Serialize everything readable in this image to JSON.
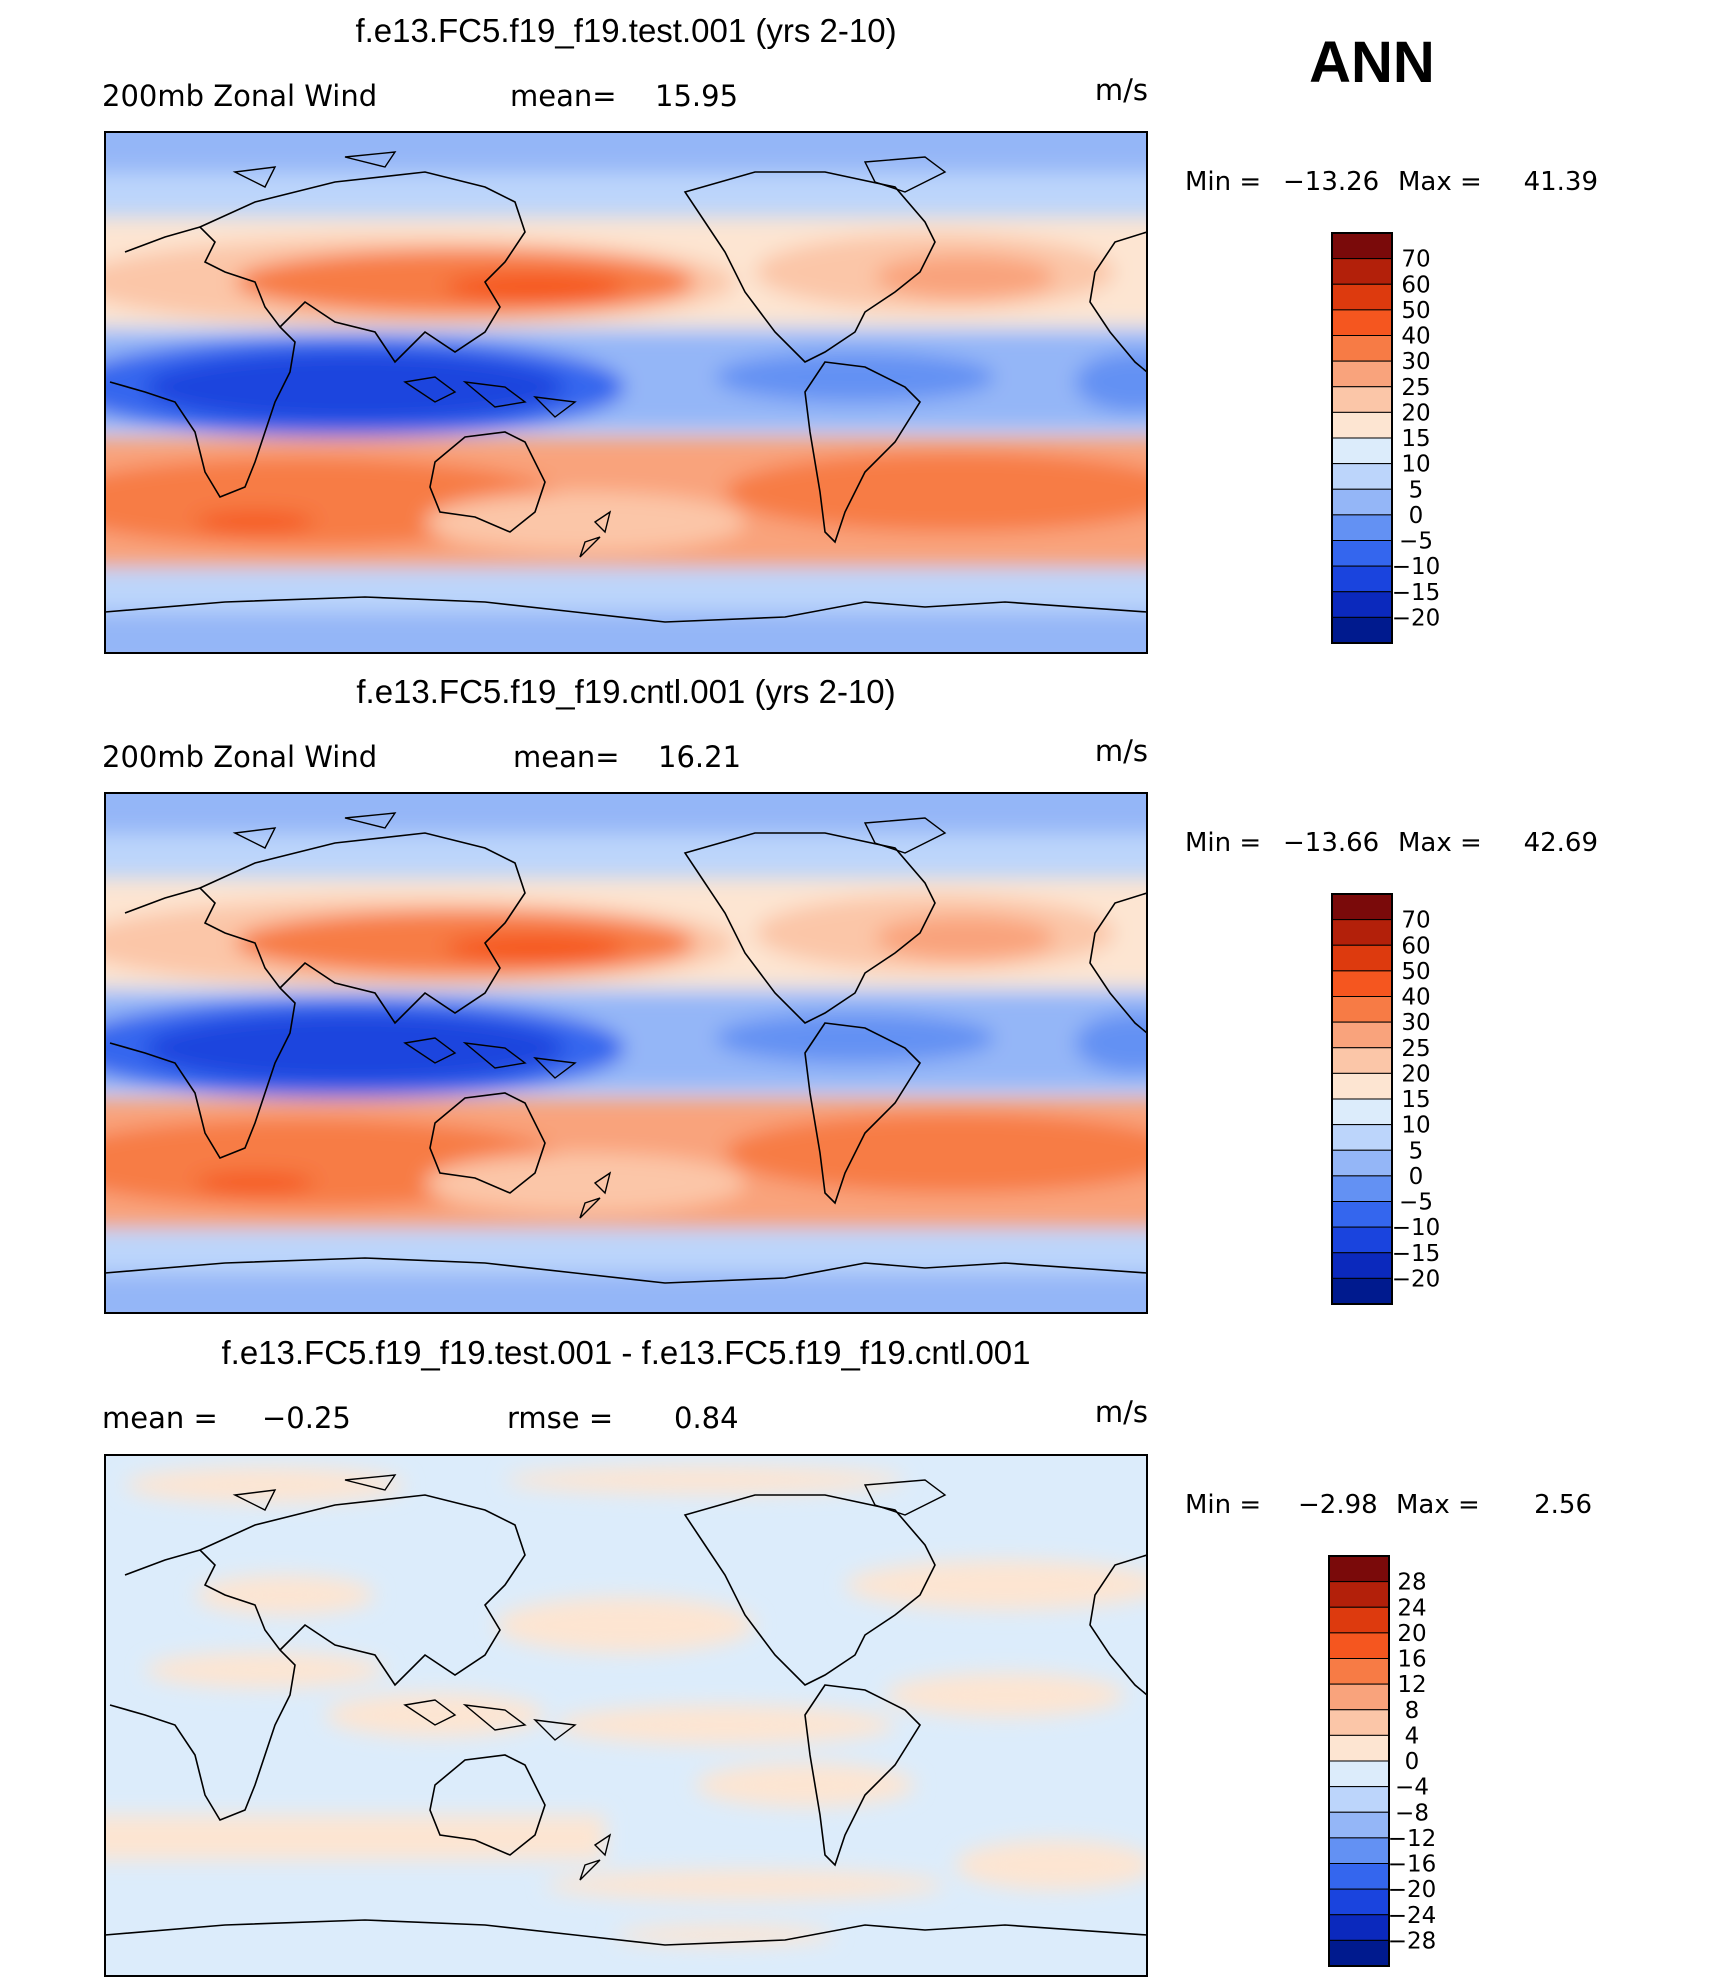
{
  "season": "ANN",
  "panels": [
    {
      "title": "f.e13.FC5.f19_f19.test.001 (yrs 2-10)",
      "left_label": "200mb  Zonal  Wind",
      "stat_label": "mean=",
      "stat_value": "15.95",
      "units": "m/s",
      "min_label": "Min  =",
      "min_value": "−13.26",
      "max_label": "Max  =",
      "max_value": "41.39",
      "colorbar": [
        "70",
        "60",
        "50",
        "40",
        "30",
        "25",
        "20",
        "15",
        "10",
        "5",
        "0",
        "−5",
        "−10",
        "−15",
        "−20"
      ],
      "colors": [
        "#7a0a0a",
        "#b3200a",
        "#dd3a0e",
        "#f5561f",
        "#f77b45",
        "#f9a37c",
        "#fbc6a8",
        "#fde5d2",
        "#dcecfb",
        "#bcd5fb",
        "#94b6f7",
        "#6391f3",
        "#3466ee",
        "#1a44de",
        "#0b29bd",
        "#001a8e"
      ]
    },
    {
      "title": "f.e13.FC5.f19_f19.cntl.001 (yrs 2-10)",
      "left_label": "200mb  Zonal  Wind",
      "stat_label": "mean=",
      "stat_value": "16.21",
      "units": "m/s",
      "min_label": "Min  =",
      "min_value": "−13.66",
      "max_label": "Max  =",
      "max_value": "42.69",
      "colorbar": [
        "70",
        "60",
        "50",
        "40",
        "30",
        "25",
        "20",
        "15",
        "10",
        "5",
        "0",
        "−5",
        "−10",
        "−15",
        "−20"
      ],
      "colors": [
        "#7a0a0a",
        "#b3200a",
        "#dd3a0e",
        "#f5561f",
        "#f77b45",
        "#f9a37c",
        "#fbc6a8",
        "#fde5d2",
        "#dcecfb",
        "#bcd5fb",
        "#94b6f7",
        "#6391f3",
        "#3466ee",
        "#1a44de",
        "#0b29bd",
        "#001a8e"
      ]
    },
    {
      "title": "f.e13.FC5.f19_f19.test.001 - f.e13.FC5.f19_f19.cntl.001",
      "left_label": "mean  =",
      "left_value": "−0.25",
      "stat_label": "rmse  =",
      "stat_value": "0.84",
      "units": "m/s",
      "min_label": "Min  =",
      "min_value": "−2.98",
      "max_label": "Max  =",
      "max_value": "2.56",
      "colorbar": [
        "28",
        "24",
        "20",
        "16",
        "12",
        "8",
        "4",
        "0",
        "−4",
        "−8",
        "−12",
        "−16",
        "−20",
        "−24",
        "−28"
      ],
      "colors": [
        "#7a0a0a",
        "#b3200a",
        "#dd3a0e",
        "#f5561f",
        "#f77b45",
        "#f9a37c",
        "#fbc6a8",
        "#fde5d2",
        "#dcecfb",
        "#bcd5fb",
        "#94b6f7",
        "#6391f3",
        "#3466ee",
        "#1a44de",
        "#0b29bd",
        "#001a8e"
      ]
    }
  ],
  "chart_data": [
    {
      "type": "heatmap",
      "title": "f.e13.FC5.f19_f19.test.001 (yrs 2-10)",
      "variable": "200mb Zonal Wind",
      "units": "m/s",
      "mean": 15.95,
      "min": -13.26,
      "max": 41.39,
      "contour_levels": [
        -20,
        -15,
        -10,
        -5,
        0,
        5,
        10,
        15,
        20,
        25,
        30,
        40,
        50,
        60,
        70
      ],
      "lat_range": [
        -90,
        90
      ],
      "lon_range": [
        0,
        360
      ]
    },
    {
      "type": "heatmap",
      "title": "f.e13.FC5.f19_f19.cntl.001 (yrs 2-10)",
      "variable": "200mb Zonal Wind",
      "units": "m/s",
      "mean": 16.21,
      "min": -13.66,
      "max": 42.69,
      "contour_levels": [
        -20,
        -15,
        -10,
        -5,
        0,
        5,
        10,
        15,
        20,
        25,
        30,
        40,
        50,
        60,
        70
      ],
      "lat_range": [
        -90,
        90
      ],
      "lon_range": [
        0,
        360
      ]
    },
    {
      "type": "heatmap",
      "title": "f.e13.FC5.f19_f19.test.001 - f.e13.FC5.f19_f19.cntl.001",
      "units": "m/s",
      "mean": -0.25,
      "rmse": 0.84,
      "min": -2.98,
      "max": 2.56,
      "contour_levels": [
        -28,
        -24,
        -20,
        -16,
        -12,
        -8,
        -4,
        0,
        4,
        8,
        12,
        16,
        20,
        24,
        28
      ],
      "lat_range": [
        -90,
        90
      ],
      "lon_range": [
        0,
        360
      ]
    }
  ]
}
